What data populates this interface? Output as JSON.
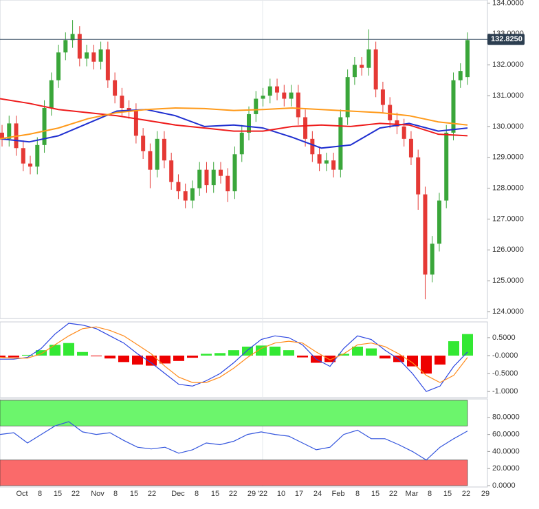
{
  "chart_data": [
    {
      "type": "candlestick",
      "up_color": "#3aa63a",
      "down_color": "#e53935",
      "open": [
        129.8,
        129.6,
        130.1,
        129.3,
        128.8,
        128.7,
        129.4,
        130.6,
        131.5,
        132.4,
        132.8,
        133.0,
        132.2,
        132.4,
        132.1,
        132.5,
        131.5,
        131.0,
        130.6,
        130.5,
        129.7,
        129.2,
        128.6,
        129.6,
        128.9,
        128.2,
        127.9,
        127.6,
        128.0,
        128.6,
        128.1,
        128.6,
        128.4,
        127.9,
        129.1,
        129.8,
        130.4,
        130.9,
        131.0,
        131.3,
        131.1,
        130.9,
        131.1,
        130.3,
        129.6,
        129.1,
        128.8,
        128.9,
        128.6,
        130.3,
        131.6,
        132.0,
        131.9,
        132.5,
        131.2,
        130.7,
        130.2,
        130.0,
        129.6,
        129.0,
        127.8,
        125.2,
        126.2,
        127.6,
        129.8,
        131.5,
        131.6
      ],
      "high": [
        130.05,
        130.35,
        130.35,
        129.55,
        129.05,
        129.65,
        130.85,
        131.75,
        132.65,
        133.05,
        133.45,
        133.25,
        132.65,
        132.65,
        132.75,
        132.75,
        131.75,
        131.25,
        130.85,
        130.75,
        129.95,
        129.45,
        129.85,
        129.85,
        129.15,
        128.45,
        128.15,
        128.25,
        128.85,
        128.85,
        128.85,
        128.85,
        128.65,
        129.35,
        130.05,
        130.65,
        131.15,
        131.25,
        131.55,
        131.55,
        131.35,
        131.35,
        131.35,
        130.55,
        129.85,
        129.35,
        129.15,
        129.15,
        130.55,
        131.85,
        132.25,
        132.25,
        133.15,
        132.75,
        131.45,
        130.95,
        130.45,
        130.25,
        129.85,
        129.25,
        128.05,
        126.45,
        127.85,
        130.05,
        131.75,
        132.05,
        133.05
      ],
      "low": [
        129.35,
        129.35,
        129.05,
        128.55,
        128.45,
        128.45,
        129.15,
        130.35,
        131.25,
        132.15,
        132.55,
        131.95,
        131.95,
        131.85,
        131.85,
        131.25,
        130.75,
        130.35,
        130.25,
        129.45,
        128.95,
        128.0,
        128.35,
        128.65,
        127.95,
        127.65,
        127.35,
        127.35,
        127.75,
        127.85,
        127.85,
        128.15,
        127.55,
        127.65,
        128.85,
        129.55,
        130.15,
        130.65,
        130.75,
        130.85,
        130.65,
        130.65,
        130.05,
        129.35,
        128.85,
        128.55,
        128.55,
        128.35,
        128.35,
        130.05,
        131.35,
        131.65,
        131.65,
        130.95,
        130.45,
        129.95,
        129.75,
        129.35,
        128.75,
        127.3,
        124.4,
        124.95,
        125.95,
        127.35,
        129.55,
        131.25,
        131.35
      ],
      "close": [
        129.6,
        130.1,
        129.3,
        128.8,
        128.7,
        129.4,
        130.6,
        131.5,
        132.4,
        132.8,
        133.0,
        132.2,
        132.4,
        132.1,
        132.5,
        131.5,
        131.0,
        130.6,
        130.5,
        129.7,
        129.2,
        128.6,
        129.6,
        128.9,
        128.2,
        127.9,
        127.6,
        128.0,
        128.6,
        128.1,
        128.6,
        128.4,
        127.9,
        129.1,
        129.8,
        130.4,
        130.9,
        131.0,
        131.3,
        131.1,
        130.9,
        131.1,
        130.3,
        129.6,
        129.1,
        128.8,
        128.9,
        128.6,
        130.3,
        131.6,
        132.0,
        131.9,
        132.5,
        131.2,
        130.7,
        130.2,
        130.0,
        129.6,
        129.0,
        127.8,
        125.2,
        126.2,
        127.6,
        129.8,
        131.5,
        131.8,
        132.8
      ],
      "series": [
        {
          "color": "#1f2fd0",
          "values": [
            129.6,
            129.5,
            129.7,
            130.1,
            130.5,
            130.55,
            130.35,
            130.0,
            130.05,
            129.95,
            129.65,
            129.3,
            129.4,
            129.95,
            130.1,
            129.85,
            129.95
          ]
        },
        {
          "color": "#ee1c1c",
          "values": [
            130.9,
            130.75,
            130.55,
            130.45,
            130.35,
            130.2,
            130.05,
            129.95,
            129.85,
            129.85,
            130.0,
            130.05,
            130.0,
            130.1,
            130.05,
            129.75,
            129.7
          ]
        },
        {
          "color": "#ff9a1a",
          "values": [
            129.6,
            129.75,
            129.95,
            130.25,
            130.45,
            130.55,
            130.6,
            130.58,
            130.52,
            130.55,
            130.6,
            130.55,
            130.5,
            130.45,
            130.35,
            130.15,
            130.05
          ]
        }
      ],
      "last_price": {
        "value": 132.825,
        "label": "132.8250"
      },
      "ylim": [
        123.8,
        134.1
      ],
      "yticks": [
        {
          "value": 124,
          "label": "124.0000"
        },
        {
          "value": 125,
          "label": "125.0000"
        },
        {
          "value": 126,
          "label": "126.0000"
        },
        {
          "value": 127,
          "label": "127.0000"
        },
        {
          "value": 128,
          "label": "128.0000"
        },
        {
          "value": 129,
          "label": "129.0000"
        },
        {
          "value": 130,
          "label": "130.0000"
        },
        {
          "value": 131,
          "label": "131.0000"
        },
        {
          "value": 132,
          "label": "132.0000"
        },
        {
          "value": 133,
          "label": "133.0000"
        },
        {
          "value": 134,
          "label": "134.0000"
        }
      ]
    },
    {
      "type": "macd",
      "up_color": "#33e833",
      "down_color": "#ee0000",
      "values": [
        -0.05,
        -0.05,
        0.02,
        0.15,
        0.3,
        0.35,
        0.1,
        -0.02,
        -0.08,
        -0.18,
        -0.25,
        -0.28,
        -0.22,
        -0.15,
        -0.06,
        0.05,
        0.07,
        0.15,
        0.25,
        0.28,
        0.25,
        0.15,
        -0.05,
        -0.2,
        -0.18,
        0.05,
        0.25,
        0.2,
        -0.08,
        -0.18,
        -0.3,
        -0.5,
        -0.25,
        0.4,
        0.6
      ],
      "series": [
        {
          "color": "#2a44e0",
          "values": [
            -0.1,
            -0.1,
            -0.05,
            0.2,
            0.6,
            0.9,
            0.85,
            0.75,
            0.55,
            0.35,
            0.05,
            -0.2,
            -0.5,
            -0.8,
            -0.85,
            -0.7,
            -0.5,
            -0.2,
            0.15,
            0.45,
            0.55,
            0.5,
            0.3,
            -0.1,
            -0.3,
            0.2,
            0.55,
            0.45,
            0.15,
            -0.1,
            -0.5,
            -1.0,
            -0.85,
            -0.3,
            0.1
          ]
        },
        {
          "color": "#ff8a1a",
          "values": [
            -0.05,
            -0.07,
            -0.07,
            0.05,
            0.3,
            0.55,
            0.75,
            0.8,
            0.7,
            0.55,
            0.3,
            0.05,
            -0.3,
            -0.6,
            -0.75,
            -0.75,
            -0.6,
            -0.35,
            -0.05,
            0.2,
            0.35,
            0.4,
            0.35,
            0.1,
            -0.12,
            0.05,
            0.3,
            0.35,
            0.25,
            0.05,
            -0.2,
            -0.55,
            -0.75,
            -0.55,
            -0.05
          ]
        }
      ],
      "ylim": [
        -1.15,
        0.9
      ],
      "yticks": [
        {
          "value": 0.5,
          "label": "0.5000"
        },
        {
          "value": 0,
          "label": "-0.0000"
        },
        {
          "value": -0.5,
          "label": "-0.5000"
        },
        {
          "value": -1,
          "label": "-1.0000"
        }
      ]
    },
    {
      "type": "rsi",
      "color": "#3355dd",
      "values": [
        60,
        62,
        50,
        60,
        70,
        75,
        63,
        60,
        62,
        53,
        45,
        43,
        45,
        38,
        42,
        50,
        48,
        52,
        60,
        63,
        60,
        58,
        50,
        42,
        45,
        60,
        65,
        55,
        55,
        48,
        40,
        30,
        45,
        55,
        64
      ],
      "bands": [
        {
          "from": 70,
          "to": 100,
          "color": "#6cf56c"
        },
        {
          "from": 0,
          "to": 30,
          "color": "#fa6a6a"
        }
      ],
      "ylim": [
        0,
        100
      ],
      "yticks": [
        {
          "value": 0,
          "label": "0.0000"
        },
        {
          "value": 20,
          "label": "20.0000"
        },
        {
          "value": 40,
          "label": "40.0000"
        },
        {
          "value": 60,
          "label": "60.0000"
        },
        {
          "value": 80,
          "label": "80.0000"
        }
      ],
      "xticks": [
        "Oct",
        "8",
        "15",
        "22",
        "Nov",
        "8",
        "15",
        "22",
        "Dec",
        "8",
        "15",
        "22",
        "29",
        "'22",
        "10",
        "17",
        "24",
        "Feb",
        "8",
        "15",
        "22",
        "Mar",
        "8",
        "15",
        "22",
        "29"
      ]
    }
  ]
}
